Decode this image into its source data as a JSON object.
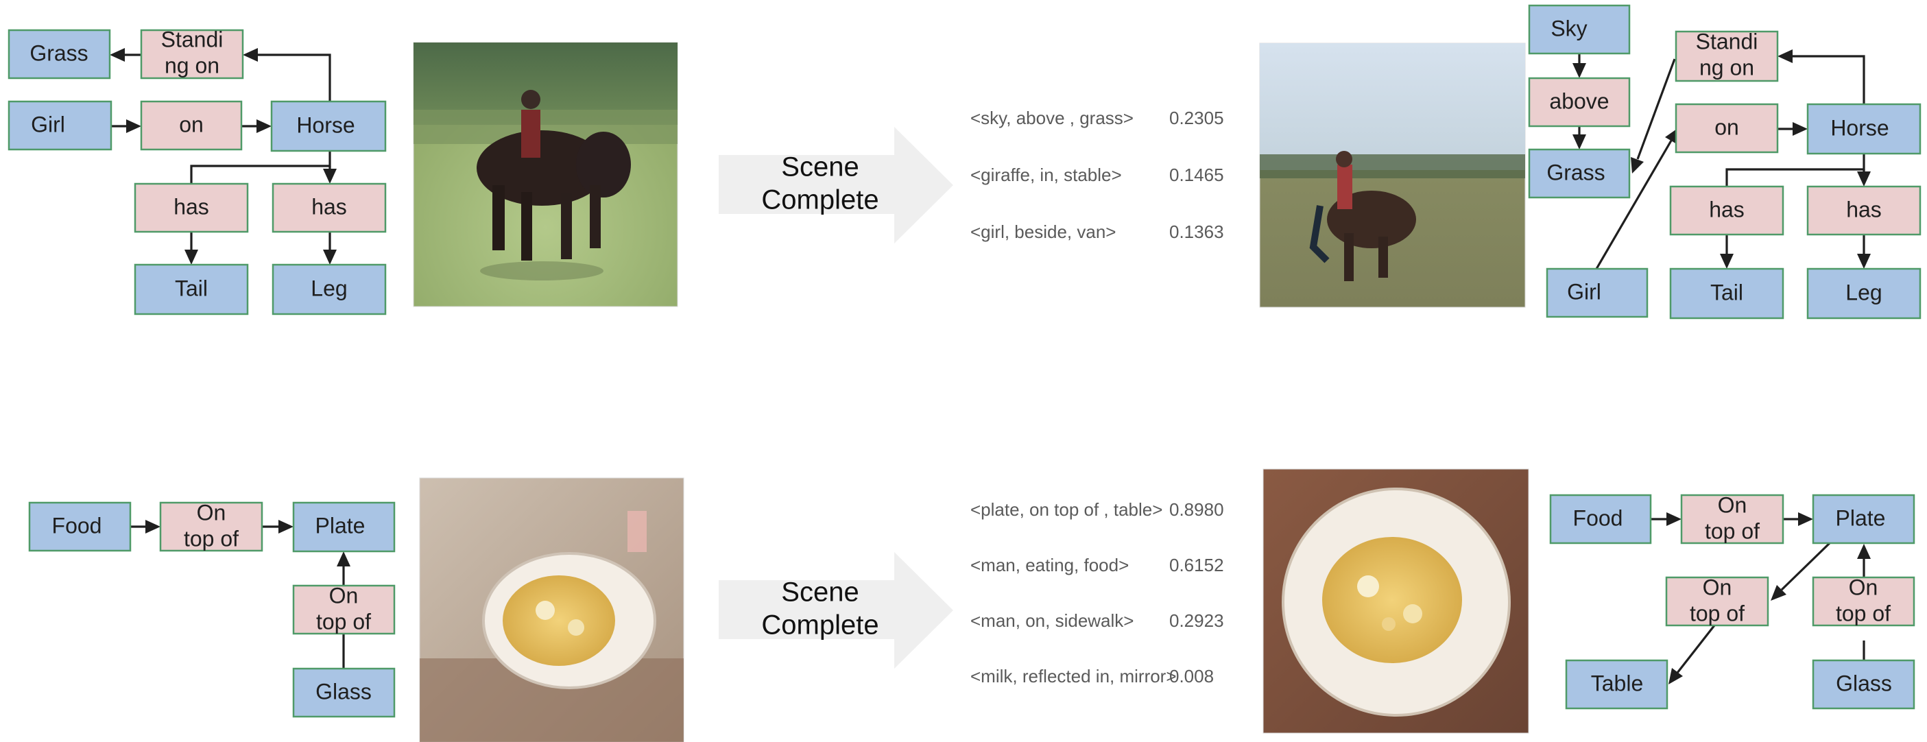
{
  "panels": {
    "top": {
      "input_graph": {
        "grass": "Grass",
        "standing_on": [
          "Standi",
          "ng on"
        ],
        "girl": "Girl",
        "on": "on",
        "horse": "Horse",
        "has_1": "has",
        "has_2": "has",
        "tail": "Tail",
        "leg": "Leg"
      },
      "arrow_label": [
        "Scene",
        "Complete"
      ],
      "candidates": [
        {
          "triple": "<sky, above , grass>",
          "score": "0.2305"
        },
        {
          "triple": "<giraffe, in, stable>",
          "score": "0.1465"
        },
        {
          "triple": "<girl, beside, van>",
          "score": "0.1363"
        }
      ],
      "output_graph": {
        "sky": "Sky",
        "above": "above",
        "grass": "Grass",
        "standing_on": [
          "Standi",
          "ng on"
        ],
        "on": "on",
        "horse": "Horse",
        "has_1": "has",
        "has_2": "has",
        "girl": "Girl",
        "tail": "Tail",
        "leg": "Leg"
      }
    },
    "bottom": {
      "input_graph": {
        "food": "Food",
        "on_top_of_1": [
          "On",
          "top of"
        ],
        "plate": "Plate",
        "on_top_of_2": [
          "On",
          "top of"
        ],
        "glass": "Glass"
      },
      "arrow_label": [
        "Scene",
        "Complete"
      ],
      "candidates": [
        {
          "triple": "<plate, on top of , table>",
          "score": "0.8980"
        },
        {
          "triple": "<man, eating, food>",
          "score": "0.6152"
        },
        {
          "triple": "<man, on, sidewalk>",
          "score": "0.2923"
        },
        {
          "triple": "<milk, reflected in, mirror>",
          "score": "0.008"
        }
      ],
      "output_graph": {
        "food": "Food",
        "on_top_of_1": [
          "On",
          "top of"
        ],
        "plate": "Plate",
        "on_top_of_2": [
          "On",
          "top of"
        ],
        "on_top_of_3": [
          "On",
          "top of"
        ],
        "table": "Table",
        "glass": "Glass"
      }
    }
  },
  "colors": {
    "object_node": "#a9c4e4",
    "relation_node": "#ebcfcf",
    "node_border": "#4f9a68",
    "arrow_fill": "#efefef",
    "candidate_text": "#5a5a5a"
  }
}
